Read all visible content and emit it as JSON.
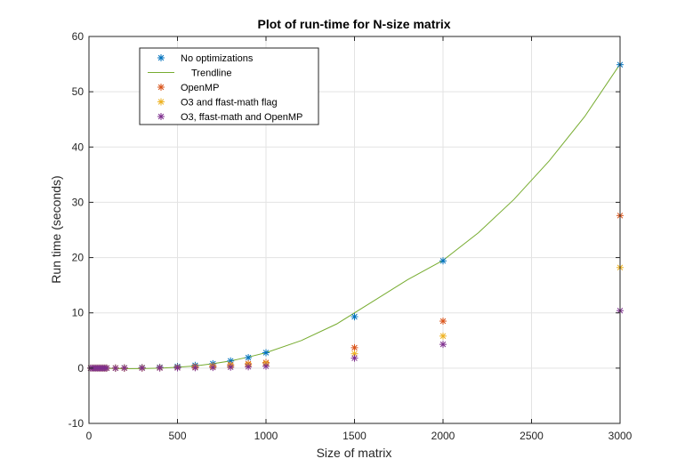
{
  "chart_data": {
    "type": "scatter",
    "title": "Plot of run-time for N-size matrix",
    "xlabel": "Size of matrix",
    "ylabel": "Run time (seconds)",
    "xlim": [
      0,
      3000
    ],
    "ylim": [
      -10,
      60
    ],
    "xticks": [
      0,
      500,
      1000,
      1500,
      2000,
      2500,
      3000
    ],
    "yticks": [
      -10,
      0,
      10,
      20,
      30,
      40,
      50,
      60
    ],
    "grid": true,
    "legend_position": "top-left",
    "series": [
      {
        "name": "No optimizations",
        "marker": "asterisk",
        "color": "#0072BD",
        "x": [
          10,
          20,
          30,
          40,
          50,
          60,
          70,
          80,
          90,
          100,
          150,
          200,
          300,
          400,
          500,
          600,
          700,
          800,
          900,
          1000,
          1500,
          2000,
          3000
        ],
        "y": [
          0,
          0,
          0,
          0,
          0,
          0,
          0,
          0,
          0,
          0,
          0.02,
          0.05,
          0.1,
          0.15,
          0.3,
          0.5,
          0.8,
          1.3,
          1.9,
          2.8,
          9.3,
          19.4,
          54.9
        ]
      },
      {
        "name": "Trendline",
        "marker": "line",
        "color": "#77AC30",
        "x": [
          0,
          100,
          200,
          300,
          400,
          500,
          600,
          700,
          800,
          900,
          1000,
          1200,
          1400,
          1600,
          1800,
          2000,
          2200,
          2400,
          2600,
          2800,
          3000
        ],
        "y": [
          0,
          -0.05,
          -0.1,
          -0.08,
          0,
          0.15,
          0.4,
          0.8,
          1.3,
          2.0,
          2.8,
          5.0,
          8.0,
          12.0,
          16.0,
          19.5,
          24.5,
          30.5,
          37.5,
          45.5,
          55.0
        ]
      },
      {
        "name": "OpenMP",
        "marker": "asterisk",
        "color": "#D95319",
        "x": [
          10,
          20,
          30,
          40,
          50,
          60,
          70,
          80,
          90,
          100,
          150,
          200,
          300,
          400,
          500,
          600,
          700,
          800,
          900,
          1000,
          1500,
          2000,
          3000
        ],
        "y": [
          0,
          0,
          0,
          0,
          0,
          0,
          0,
          0,
          0,
          0,
          0.01,
          0.02,
          0.05,
          0.08,
          0.15,
          0.25,
          0.4,
          0.6,
          0.8,
          1.0,
          3.7,
          8.5,
          27.6
        ]
      },
      {
        "name": "O3 and ffast-math flag",
        "marker": "asterisk",
        "color": "#EDB120",
        "x": [
          10,
          20,
          30,
          40,
          50,
          60,
          70,
          80,
          90,
          100,
          150,
          200,
          300,
          400,
          500,
          600,
          700,
          800,
          900,
          1000,
          1500,
          2000,
          3000
        ],
        "y": [
          0,
          0,
          0,
          0,
          0,
          0,
          0,
          0,
          0,
          0,
          0.01,
          0.01,
          0.03,
          0.05,
          0.1,
          0.18,
          0.3,
          0.45,
          0.6,
          0.8,
          2.6,
          5.8,
          18.2
        ]
      },
      {
        "name": "O3, ffast-math and OpenMP",
        "marker": "asterisk",
        "color": "#7E2F8E",
        "x": [
          10,
          20,
          30,
          40,
          50,
          60,
          70,
          80,
          90,
          100,
          150,
          200,
          300,
          400,
          500,
          600,
          700,
          800,
          900,
          1000,
          1500,
          2000,
          3000
        ],
        "y": [
          0,
          0,
          0,
          0,
          0,
          0,
          0,
          0,
          0,
          0,
          0,
          0.01,
          0.02,
          0.03,
          0.05,
          0.08,
          0.12,
          0.18,
          0.25,
          0.35,
          1.8,
          4.3,
          10.4
        ]
      }
    ]
  }
}
